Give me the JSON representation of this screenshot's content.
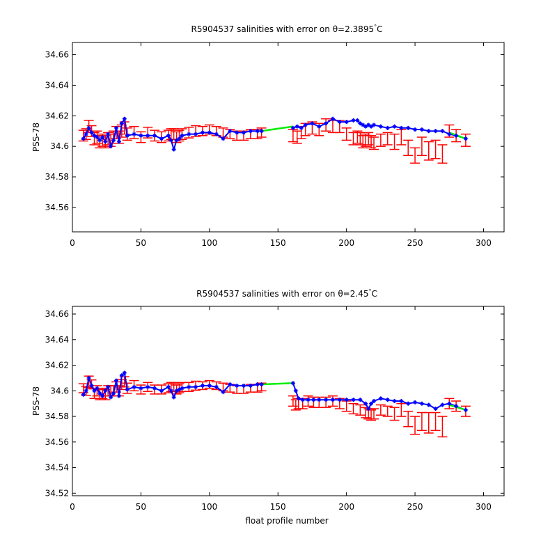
{
  "chart_data": [
    {
      "type": "line",
      "title": "R5904537 salinities with error on θ=2.3895°C",
      "title_main": "R5904537 salinities with error on θ=2.3895",
      "title_degree": "°",
      "title_unit": "C",
      "xlabel": "",
      "ylabel": "PSS-78",
      "xlim": [
        0,
        315
      ],
      "ylim": [
        34.544,
        34.668
      ],
      "xticks": [
        0,
        50,
        100,
        150,
        200,
        250,
        300
      ],
      "xtick_labels": [
        "0",
        "50",
        "100",
        "150",
        "200",
        "250",
        "300"
      ],
      "yticks": [
        34.56,
        34.58,
        34.6,
        34.62,
        34.64,
        34.66
      ],
      "ytick_labels": [
        "34.56",
        "34.58",
        "34.6",
        "34.62",
        "34.64",
        "34.66"
      ],
      "grid": false,
      "legend": "none",
      "colors": {
        "errorbar": "#ff0000",
        "points": "#0000ff",
        "gap_line": "#00ee00"
      },
      "series": [
        {
          "x": [
            8,
            10,
            12,
            14,
            16,
            18,
            20,
            22,
            24,
            26,
            28,
            30,
            32,
            34,
            36,
            38,
            40,
            45,
            50,
            55,
            60,
            65,
            70,
            72,
            74,
            76,
            78,
            80,
            85,
            90,
            95,
            100,
            105,
            110,
            115,
            120,
            125,
            130,
            135,
            138,
            161,
            164,
            167,
            170,
            175,
            180,
            185,
            190,
            195,
            200,
            205,
            208,
            210,
            212,
            214,
            216,
            218,
            220,
            225,
            230,
            235,
            240,
            245,
            250,
            255,
            260,
            265,
            270,
            275,
            280,
            287
          ],
          "y": [
            34.605,
            34.608,
            34.612,
            34.609,
            34.607,
            34.606,
            34.604,
            34.606,
            34.603,
            34.608,
            34.6,
            34.604,
            34.612,
            34.603,
            34.615,
            34.618,
            34.607,
            34.608,
            34.607,
            34.607,
            34.607,
            34.605,
            34.607,
            34.604,
            34.598,
            34.604,
            34.605,
            34.607,
            34.608,
            34.608,
            34.609,
            34.609,
            34.608,
            34.605,
            34.61,
            34.609,
            34.609,
            34.61,
            34.61,
            34.61,
            34.612,
            34.613,
            34.612,
            34.614,
            34.615,
            34.613,
            34.615,
            34.618,
            34.616,
            34.616,
            34.617,
            34.617,
            34.615,
            34.614,
            34.613,
            34.614,
            34.613,
            34.614,
            34.613,
            34.612,
            34.613,
            34.612,
            34.612,
            34.611,
            34.611,
            34.61,
            34.61,
            34.61,
            34.608,
            34.607,
            34.605
          ],
          "err_y": [
            34.607,
            34.608,
            34.613,
            34.61,
            34.605,
            34.606,
            34.603,
            34.604,
            34.603,
            34.605,
            34.604,
            34.606,
            34.609,
            34.606,
            34.61,
            34.612,
            34.608,
            34.609,
            34.606,
            34.609,
            34.607,
            34.606,
            34.607,
            34.608,
            34.608,
            34.606,
            34.607,
            34.608,
            34.609,
            34.61,
            34.61,
            34.611,
            34.61,
            34.609,
            34.608,
            34.607,
            34.607,
            34.608,
            34.608,
            34.609,
            34.607,
            34.606,
            34.609,
            34.611,
            34.612,
            34.611,
            34.614,
            34.613,
            34.613,
            34.608,
            34.605,
            34.606,
            34.605,
            34.603,
            34.604,
            34.605,
            34.603,
            34.602,
            34.604,
            34.605,
            34.603,
            34.606,
            34.599,
            34.594,
            34.6,
            34.597,
            34.598,
            34.595,
            34.61,
            34.607,
            34.604
          ],
          "err": [
            0.0035,
            0.0035,
            0.004,
            0.0035,
            0.004,
            0.004,
            0.004,
            0.004,
            0.004,
            0.004,
            0.004,
            0.004,
            0.004,
            0.004,
            0.004,
            0.004,
            0.004,
            0.004,
            0.0035,
            0.0035,
            0.0035,
            0.0035,
            0.0035,
            0.0035,
            0.0035,
            0.0035,
            0.0035,
            0.0035,
            0.0035,
            0.0035,
            0.003,
            0.003,
            0.003,
            0.003,
            0.003,
            0.003,
            0.003,
            0.003,
            0.003,
            0.003,
            0.004,
            0.004,
            0.004,
            0.004,
            0.004,
            0.004,
            0.004,
            0.004,
            0.004,
            0.004,
            0.004,
            0.004,
            0.004,
            0.004,
            0.004,
            0.004,
            0.004,
            0.004,
            0.004,
            0.004,
            0.005,
            0.005,
            0.005,
            0.005,
            0.006,
            0.006,
            0.006,
            0.006,
            0.004,
            0.004,
            0.004
          ]
        }
      ],
      "gap_segments": [
        {
          "x": [
            138,
            161
          ],
          "y": [
            34.61,
            34.613
          ]
        },
        {
          "x": [
            275,
            287
          ],
          "y": [
            34.609,
            34.605
          ]
        }
      ]
    },
    {
      "type": "line",
      "title": "R5904537 salinities with error on θ=2.45°C",
      "title_main": "R5904537 salinities with error on θ=2.45",
      "title_degree": "°",
      "title_unit": "C",
      "xlabel": "float profile number",
      "ylabel": "PSS-78",
      "xlim": [
        0,
        315
      ],
      "ylim": [
        34.518,
        34.666
      ],
      "xticks": [
        0,
        50,
        100,
        150,
        200,
        250,
        300
      ],
      "xtick_labels": [
        "0",
        "50",
        "100",
        "150",
        "200",
        "250",
        "300"
      ],
      "yticks": [
        34.52,
        34.54,
        34.56,
        34.58,
        34.6,
        34.62,
        34.64,
        34.66
      ],
      "ytick_labels": [
        "34.52",
        "34.54",
        "34.56",
        "34.58",
        "34.6",
        "34.62",
        "34.64",
        "34.66"
      ],
      "grid": false,
      "legend": "none",
      "colors": {
        "errorbar": "#ff0000",
        "points": "#0000ff",
        "gap_line": "#00ee00"
      },
      "series": [
        {
          "x": [
            8,
            10,
            12,
            14,
            16,
            18,
            20,
            22,
            24,
            26,
            28,
            30,
            32,
            34,
            36,
            38,
            40,
            45,
            50,
            55,
            60,
            65,
            70,
            72,
            74,
            76,
            78,
            80,
            85,
            90,
            95,
            100,
            105,
            110,
            115,
            120,
            125,
            130,
            135,
            138,
            161,
            163,
            165,
            168,
            172,
            176,
            180,
            185,
            190,
            195,
            200,
            205,
            210,
            214,
            216,
            218,
            220,
            225,
            230,
            235,
            240,
            245,
            250,
            255,
            260,
            265,
            270,
            275,
            280,
            287
          ],
          "y": [
            34.597,
            34.6,
            34.61,
            34.604,
            34.6,
            34.602,
            34.598,
            34.596,
            34.6,
            34.603,
            34.595,
            34.598,
            34.608,
            34.596,
            34.612,
            34.614,
            34.601,
            34.603,
            34.602,
            34.603,
            34.602,
            34.6,
            34.603,
            34.6,
            34.595,
            34.6,
            34.601,
            34.602,
            34.603,
            34.603,
            34.604,
            34.604,
            34.603,
            34.599,
            34.605,
            34.604,
            34.604,
            34.604,
            34.605,
            34.605,
            34.606,
            34.6,
            34.594,
            34.593,
            34.593,
            34.593,
            34.593,
            34.593,
            34.593,
            34.593,
            34.593,
            34.593,
            34.593,
            34.59,
            34.586,
            34.59,
            34.592,
            34.594,
            34.593,
            34.592,
            34.592,
            34.59,
            34.591,
            34.59,
            34.589,
            34.586,
            34.589,
            34.59,
            34.588,
            34.585
          ],
          "err_y": [
            34.602,
            34.6,
            34.607,
            34.605,
            34.598,
            34.6,
            34.597,
            34.598,
            34.597,
            34.6,
            34.6,
            34.6,
            34.603,
            34.6,
            34.605,
            34.607,
            34.602,
            34.604,
            34.601,
            34.603,
            34.601,
            34.601,
            34.602,
            34.603,
            34.603,
            34.601,
            34.602,
            34.603,
            34.603,
            34.604,
            34.604,
            34.605,
            34.604,
            34.603,
            34.602,
            34.601,
            34.601,
            34.602,
            34.602,
            34.603,
            34.592,
            34.589,
            34.59,
            34.59,
            34.592,
            34.591,
            34.591,
            34.591,
            34.592,
            34.59,
            34.588,
            34.586,
            34.585,
            34.583,
            34.582,
            34.581,
            34.582,
            34.585,
            34.584,
            34.582,
            34.585,
            34.578,
            34.573,
            34.576,
            34.575,
            34.576,
            34.572,
            34.59,
            34.588,
            34.584
          ],
          "err": [
            0.0035,
            0.0035,
            0.0045,
            0.0035,
            0.004,
            0.004,
            0.004,
            0.004,
            0.004,
            0.004,
            0.004,
            0.004,
            0.004,
            0.004,
            0.004,
            0.004,
            0.004,
            0.004,
            0.0035,
            0.0035,
            0.0035,
            0.0035,
            0.0035,
            0.0035,
            0.0035,
            0.0035,
            0.0035,
            0.0035,
            0.0035,
            0.0035,
            0.003,
            0.003,
            0.003,
            0.003,
            0.003,
            0.003,
            0.003,
            0.003,
            0.003,
            0.003,
            0.004,
            0.004,
            0.004,
            0.004,
            0.004,
            0.004,
            0.004,
            0.004,
            0.004,
            0.004,
            0.004,
            0.004,
            0.004,
            0.004,
            0.004,
            0.004,
            0.004,
            0.004,
            0.004,
            0.005,
            0.005,
            0.006,
            0.007,
            0.007,
            0.008,
            0.007,
            0.008,
            0.004,
            0.004,
            0.004
          ]
        }
      ],
      "gap_segments": [
        {
          "x": [
            138,
            161
          ],
          "y": [
            34.605,
            34.606
          ]
        },
        {
          "x": [
            275,
            287
          ],
          "y": [
            34.589,
            34.585
          ]
        }
      ]
    }
  ]
}
